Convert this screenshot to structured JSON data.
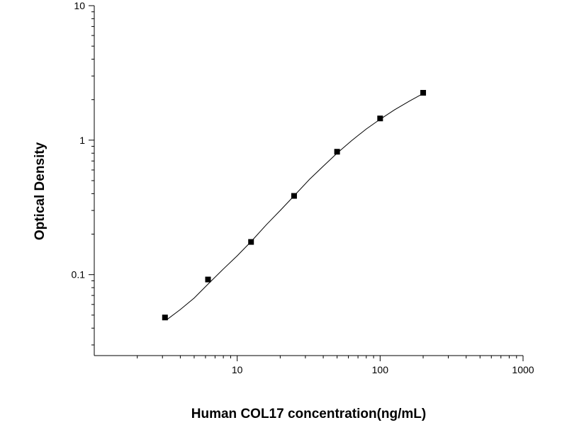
{
  "chart_data": {
    "type": "scatter",
    "title": "",
    "xlabel": "Human COL17 concentration(ng/mL)",
    "ylabel": "Optical Density",
    "xscale": "log",
    "yscale": "log",
    "xlim": [
      1,
      1000
    ],
    "ylim": [
      0.025,
      10
    ],
    "grid": false,
    "legend": "none",
    "x_ticks": [
      {
        "value": 10,
        "label": "10"
      },
      {
        "value": 100,
        "label": "100"
      },
      {
        "value": 1000,
        "label": "1000"
      }
    ],
    "y_ticks": [
      {
        "value": 0.1,
        "label": "0.1"
      },
      {
        "value": 1,
        "label": "1"
      },
      {
        "value": 10,
        "label": "10"
      }
    ],
    "series": [
      {
        "marker": "square",
        "color": "#000000",
        "x": [
          3.125,
          6.25,
          12.5,
          25,
          50,
          100,
          200
        ],
        "y": [
          0.048,
          0.092,
          0.175,
          0.385,
          0.82,
          1.45,
          2.25
        ]
      }
    ],
    "fit_curve": {
      "type": "four-parameter logistic",
      "color": "#000000",
      "x_range": [
        3.125,
        200
      ],
      "points": [
        [
          3.2,
          0.046
        ],
        [
          4,
          0.055
        ],
        [
          5,
          0.067
        ],
        [
          6.25,
          0.085
        ],
        [
          8,
          0.11
        ],
        [
          10,
          0.138
        ],
        [
          12.5,
          0.176
        ],
        [
          16,
          0.235
        ],
        [
          20,
          0.3
        ],
        [
          25,
          0.385
        ],
        [
          32,
          0.51
        ],
        [
          40,
          0.64
        ],
        [
          50,
          0.8
        ],
        [
          63,
          0.99
        ],
        [
          80,
          1.21
        ],
        [
          100,
          1.43
        ],
        [
          126,
          1.68
        ],
        [
          160,
          1.95
        ],
        [
          200,
          2.22
        ]
      ]
    }
  }
}
